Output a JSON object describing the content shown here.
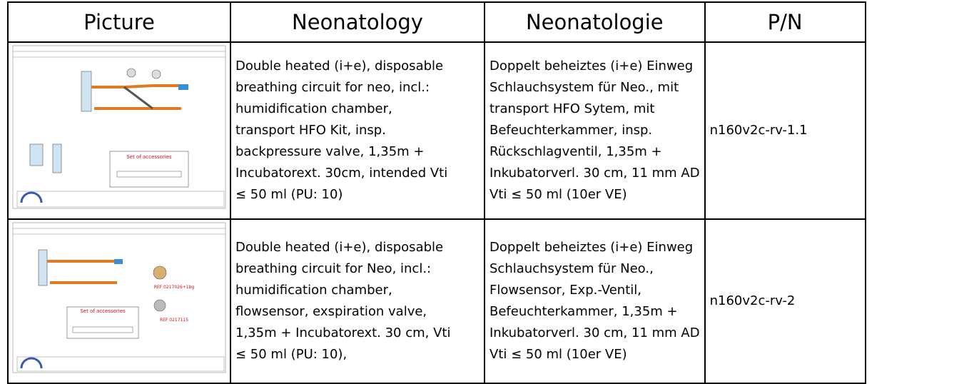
{
  "table": {
    "header": [
      "Picture",
      "Neonatology",
      "Neonatologie",
      "P/N"
    ],
    "rows": [
      {
        "picture": {
          "labels": [
            "Set of accessories"
          ]
        },
        "en": [
          "Double heated (i+e), disposable",
          "breathing circuit for neo, incl.:",
          "humidification chamber,",
          "transport HFO Kit, insp.",
          "backpressure valve, 1,35m +",
          "Incubatorext. 30cm, intended Vti",
          "≤ 50 ml (PU: 10)"
        ],
        "de": [
          "Doppelt beheiztes (i+e) Einweg",
          "Schlauchsystem für Neo., mit",
          "transport HFO Sytem, mit",
          "Befeuchterkammer, insp.",
          "Rückschlagventil, 1,35m +",
          "Inkubatorverl. 30 cm, 11 mm AD",
          "Vti ≤ 50 ml (10er VE)"
        ],
        "pn": "n160v2c-rv-1.1"
      },
      {
        "picture": {
          "labels": [
            "Set of accessories",
            "REF 0217026+1bg",
            "REF 0217115"
          ]
        },
        "en": [
          "Double heated (i+e), disposable",
          "breathing circuit for Neo, incl.:",
          "humidification chamber,",
          "flowsensor, exspiration valve,",
          "1,35m + Incubatorext. 30 cm, Vti",
          "≤ 50 ml (PU: 10),"
        ],
        "de": [
          "Doppelt beheiztes (i+e) Einweg",
          "Schlauchsystem für Neo.,",
          "Flowsensor, Exp.-Ventil,",
          "Befeuchterkammer, 1,35m +",
          "Inkubatorverl. 30 cm, 11 mm AD",
          "Vti  ≤ 50 ml (10er VE)"
        ],
        "pn": "n160v2c-rv-2"
      }
    ]
  }
}
